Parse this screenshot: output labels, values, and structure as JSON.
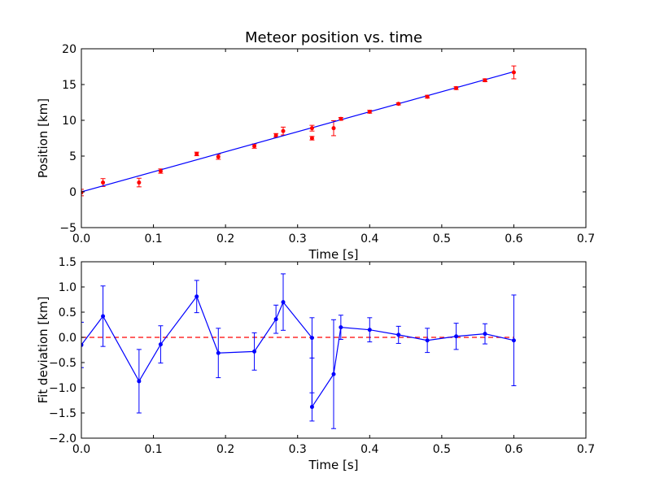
{
  "chart_data": [
    {
      "type": "scatter",
      "title": "Meteor position vs. time",
      "xlabel": "Time [s]",
      "ylabel": "Position [km]",
      "xlim": [
        0.0,
        0.7
      ],
      "ylim": [
        -5,
        20
      ],
      "xticks": [
        "0.0",
        "0.1",
        "0.2",
        "0.3",
        "0.4",
        "0.5",
        "0.6",
        "0.7"
      ],
      "yticks": [
        "−5",
        "0",
        "5",
        "10",
        "15",
        "20"
      ],
      "grid": false,
      "colors": {
        "points": "#ff0000",
        "fit": "#0000ff"
      },
      "series": [
        {
          "kind": "points-with-error-bars",
          "points": [
            {
              "x": 0.0,
              "y": -0.1,
              "err": 0.45
            },
            {
              "x": 0.03,
              "y": 1.3,
              "err": 0.55
            },
            {
              "x": 0.08,
              "y": 1.3,
              "err": 0.6
            },
            {
              "x": 0.11,
              "y": 2.9,
              "err": 0.3
            },
            {
              "x": 0.16,
              "y": 5.3,
              "err": 0.25
            },
            {
              "x": 0.19,
              "y": 4.9,
              "err": 0.35
            },
            {
              "x": 0.24,
              "y": 6.4,
              "err": 0.3
            },
            {
              "x": 0.27,
              "y": 7.9,
              "err": 0.25
            },
            {
              "x": 0.28,
              "y": 8.5,
              "err": 0.55
            },
            {
              "x": 0.32,
              "y": 8.9,
              "err": 0.4
            },
            {
              "x": 0.32,
              "y": 7.5,
              "err": 0.25
            },
            {
              "x": 0.35,
              "y": 8.9,
              "err": 1.05
            },
            {
              "x": 0.36,
              "y": 10.2,
              "err": 0.2
            },
            {
              "x": 0.4,
              "y": 11.2,
              "err": 0.2
            },
            {
              "x": 0.44,
              "y": 12.3,
              "err": 0.15
            },
            {
              "x": 0.48,
              "y": 13.3,
              "err": 0.2
            },
            {
              "x": 0.52,
              "y": 14.5,
              "err": 0.2
            },
            {
              "x": 0.56,
              "y": 15.6,
              "err": 0.2
            },
            {
              "x": 0.6,
              "y": 16.7,
              "err": 0.9
            }
          ]
        },
        {
          "kind": "fit-line",
          "x": [
            0.0,
            0.6
          ],
          "y": [
            0.0,
            16.8
          ]
        }
      ]
    },
    {
      "type": "line",
      "title": "",
      "xlabel": "Time [s]",
      "ylabel": "Fit deviation [km]",
      "xlim": [
        0.0,
        0.7
      ],
      "ylim": [
        -2.0,
        1.5
      ],
      "xticks": [
        "0.0",
        "0.1",
        "0.2",
        "0.3",
        "0.4",
        "0.5",
        "0.6",
        "0.7"
      ],
      "yticks": [
        "−2.0",
        "−1.5",
        "−1.0",
        "−0.5",
        "0.0",
        "0.5",
        "1.0",
        "1.5"
      ],
      "grid": false,
      "colors": {
        "series": "#0000ff",
        "zero_line": "#ff0000"
      },
      "series": [
        {
          "kind": "line-with-error-bars",
          "points": [
            {
              "x": 0.0,
              "y": -0.15,
              "err": 0.45
            },
            {
              "x": 0.03,
              "y": 0.42,
              "err": 0.6
            },
            {
              "x": 0.08,
              "y": -0.87,
              "err": 0.63
            },
            {
              "x": 0.11,
              "y": -0.14,
              "err": 0.37
            },
            {
              "x": 0.16,
              "y": 0.81,
              "err": 0.32
            },
            {
              "x": 0.19,
              "y": -0.31,
              "err": 0.49
            },
            {
              "x": 0.24,
              "y": -0.28,
              "err": 0.37
            },
            {
              "x": 0.27,
              "y": 0.36,
              "err": 0.28
            },
            {
              "x": 0.28,
              "y": 0.7,
              "err": 0.56
            },
            {
              "x": 0.32,
              "y": -0.01,
              "err": 0.4
            },
            {
              "x": 0.32,
              "y": -1.38,
              "err": 0.28
            },
            {
              "x": 0.35,
              "y": -0.73,
              "err": 1.08
            },
            {
              "x": 0.36,
              "y": 0.2,
              "err": 0.24
            },
            {
              "x": 0.4,
              "y": 0.15,
              "err": 0.24
            },
            {
              "x": 0.44,
              "y": 0.05,
              "err": 0.17
            },
            {
              "x": 0.48,
              "y": -0.06,
              "err": 0.24
            },
            {
              "x": 0.52,
              "y": 0.02,
              "err": 0.26
            },
            {
              "x": 0.56,
              "y": 0.07,
              "err": 0.2
            },
            {
              "x": 0.6,
              "y": -0.06,
              "err": 0.9
            }
          ]
        },
        {
          "kind": "zero-line",
          "style": "dashed",
          "x": [
            0.0,
            0.6
          ],
          "y": [
            0.0,
            0.0
          ]
        }
      ]
    }
  ]
}
